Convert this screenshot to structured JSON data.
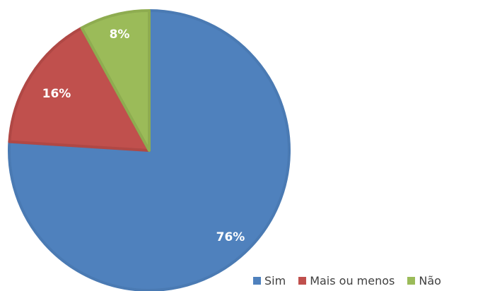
{
  "chart_data": {
    "type": "pie",
    "title": "",
    "categories": [
      "Sim",
      "Mais ou menos",
      "Não"
    ],
    "values": [
      76,
      16,
      8
    ],
    "data_labels": [
      "76%",
      "16%",
      "8%"
    ],
    "colors": [
      "#4f81bd",
      "#c0504d",
      "#9bbb59"
    ],
    "border_colors": [
      "#4a7ab3",
      "#b04845",
      "#8eac50"
    ],
    "start_angle_deg": 0,
    "direction": "clockwise",
    "legend_position": "bottom-right"
  }
}
